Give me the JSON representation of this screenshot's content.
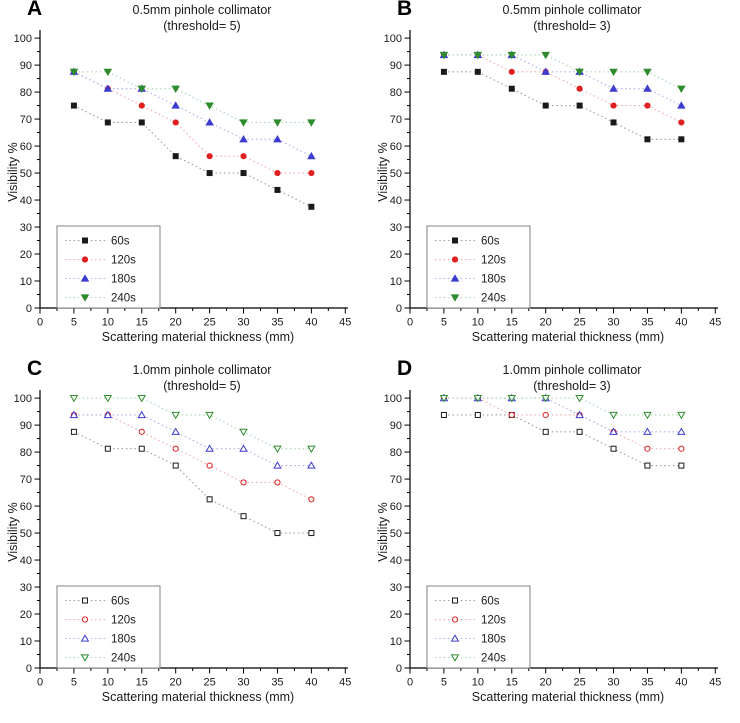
{
  "figure": {
    "background": "#ffffff",
    "axis_color": "#000000",
    "tick_label_color": "#1a1a1a",
    "legend_border_color": "#808080",
    "series_colors": {
      "60s": "#1a1a1a",
      "120s": "#e02020",
      "180s": "#3c3cd0",
      "240s": "#2e8b2e"
    },
    "series_line_colors": {
      "60s": "#9a9a9a",
      "120s": "#f0a6a6",
      "180s": "#a9aee9",
      "240s": "#a9d8a9"
    }
  },
  "chart_data": [
    {
      "type": "line",
      "panel_letter": "A",
      "title": "0.5mm pinhole collimator",
      "subtitle": "(threshold= 5)",
      "xlabel": "Scattering material thickness (mm)",
      "ylabel": "Visibility %",
      "xlim": [
        0,
        45
      ],
      "ylim": [
        0,
        100
      ],
      "x_ticks": [
        0,
        5,
        10,
        15,
        20,
        25,
        30,
        35,
        40,
        45
      ],
      "y_ticks": [
        0,
        10,
        20,
        30,
        40,
        50,
        60,
        70,
        80,
        90,
        100
      ],
      "grid": false,
      "legend_position": "lower-left",
      "marker_style": "filled",
      "x": [
        5,
        10,
        15,
        20,
        25,
        30,
        35,
        40
      ],
      "series": [
        {
          "name": "60s",
          "marker": "square",
          "color": "#1a1a1a",
          "line_color": "#9a9a9a",
          "values": [
            75,
            68.75,
            68.75,
            56.25,
            50,
            50,
            43.75,
            37.5
          ]
        },
        {
          "name": "120s",
          "marker": "circle",
          "color": "#e02020",
          "line_color": "#f0a6a6",
          "values": [
            87.5,
            81.25,
            75,
            68.75,
            56.25,
            56.25,
            50,
            50
          ]
        },
        {
          "name": "180s",
          "marker": "triangle-up",
          "color": "#3c3cd0",
          "line_color": "#a9aee9",
          "values": [
            87.5,
            81.25,
            81.25,
            75,
            68.75,
            62.5,
            62.5,
            56.25
          ]
        },
        {
          "name": "240s",
          "marker": "triangle-down",
          "color": "#2e8b2e",
          "line_color": "#a9d8a9",
          "values": [
            87.5,
            87.5,
            81.25,
            81.25,
            75,
            68.75,
            68.75,
            68.75
          ]
        }
      ]
    },
    {
      "type": "line",
      "panel_letter": "B",
      "title": "0.5mm pinhole collimator",
      "subtitle": "(threshold= 3)",
      "xlabel": "Scattering material thickness (mm)",
      "ylabel": "Visibility %",
      "xlim": [
        0,
        45
      ],
      "ylim": [
        0,
        100
      ],
      "x_ticks": [
        0,
        5,
        10,
        15,
        20,
        25,
        30,
        35,
        40,
        45
      ],
      "y_ticks": [
        0,
        10,
        20,
        30,
        40,
        50,
        60,
        70,
        80,
        90,
        100
      ],
      "grid": false,
      "legend_position": "lower-left",
      "marker_style": "filled",
      "x": [
        5,
        10,
        15,
        20,
        25,
        30,
        35,
        40
      ],
      "series": [
        {
          "name": "60s",
          "marker": "square",
          "color": "#1a1a1a",
          "line_color": "#9a9a9a",
          "values": [
            87.5,
            87.5,
            81.25,
            75,
            75,
            68.75,
            62.5,
            62.5
          ]
        },
        {
          "name": "120s",
          "marker": "circle",
          "color": "#e02020",
          "line_color": "#f0a6a6",
          "values": [
            93.75,
            93.75,
            87.5,
            87.5,
            81.25,
            75,
            75,
            68.75
          ]
        },
        {
          "name": "180s",
          "marker": "triangle-up",
          "color": "#3c3cd0",
          "line_color": "#a9aee9",
          "values": [
            93.75,
            93.75,
            93.75,
            87.5,
            87.5,
            81.25,
            81.25,
            75
          ]
        },
        {
          "name": "240s",
          "marker": "triangle-down",
          "color": "#2e8b2e",
          "line_color": "#a9d8a9",
          "values": [
            93.75,
            93.75,
            93.75,
            93.75,
            87.5,
            87.5,
            87.5,
            81.25
          ]
        }
      ]
    },
    {
      "type": "line",
      "panel_letter": "C",
      "title": "1.0mm pinhole collimator",
      "subtitle": "(threshold= 5)",
      "xlabel": "Scattering material thickness (mm)",
      "ylabel": "Visibility %",
      "xlim": [
        0,
        45
      ],
      "ylim": [
        0,
        100
      ],
      "x_ticks": [
        0,
        5,
        10,
        15,
        20,
        25,
        30,
        35,
        40,
        45
      ],
      "y_ticks": [
        0,
        10,
        20,
        30,
        40,
        50,
        60,
        70,
        80,
        90,
        100
      ],
      "grid": false,
      "legend_position": "lower-left",
      "marker_style": "open",
      "x": [
        5,
        10,
        15,
        20,
        25,
        30,
        35,
        40
      ],
      "series": [
        {
          "name": "60s",
          "marker": "square",
          "color": "#1a1a1a",
          "line_color": "#9a9a9a",
          "values": [
            87.5,
            81.25,
            81.25,
            75,
            62.5,
            56.25,
            50,
            50
          ]
        },
        {
          "name": "120s",
          "marker": "circle",
          "color": "#e02020",
          "line_color": "#f0a6a6",
          "values": [
            93.75,
            93.75,
            87.5,
            81.25,
            75,
            68.75,
            68.75,
            62.5
          ]
        },
        {
          "name": "180s",
          "marker": "triangle-up",
          "color": "#3c3cd0",
          "line_color": "#a9aee9",
          "values": [
            93.75,
            93.75,
            93.75,
            87.5,
            81.25,
            81.25,
            75,
            75
          ]
        },
        {
          "name": "240s",
          "marker": "triangle-down",
          "color": "#2e8b2e",
          "line_color": "#a9d8a9",
          "values": [
            100,
            100,
            100,
            93.75,
            93.75,
            87.5,
            81.25,
            81.25
          ]
        }
      ]
    },
    {
      "type": "line",
      "panel_letter": "D",
      "title": "1.0mm pinhole collimator",
      "subtitle": "(threshold= 3)",
      "xlabel": "Scattering material thickness (mm)",
      "ylabel": "Visibility %",
      "xlim": [
        0,
        45
      ],
      "ylim": [
        0,
        100
      ],
      "x_ticks": [
        0,
        5,
        10,
        15,
        20,
        25,
        30,
        35,
        40,
        45
      ],
      "y_ticks": [
        0,
        10,
        20,
        30,
        40,
        50,
        60,
        70,
        80,
        90,
        100
      ],
      "grid": false,
      "legend_position": "lower-left",
      "marker_style": "open",
      "x": [
        5,
        10,
        15,
        20,
        25,
        30,
        35,
        40
      ],
      "series": [
        {
          "name": "60s",
          "marker": "square",
          "color": "#1a1a1a",
          "line_color": "#9a9a9a",
          "values": [
            93.75,
            93.75,
            93.75,
            87.5,
            87.5,
            81.25,
            75,
            75
          ]
        },
        {
          "name": "120s",
          "marker": "circle",
          "color": "#e02020",
          "line_color": "#f0a6a6",
          "values": [
            100,
            100,
            93.75,
            93.75,
            93.75,
            87.5,
            81.25,
            81.25
          ]
        },
        {
          "name": "180s",
          "marker": "triangle-up",
          "color": "#3c3cd0",
          "line_color": "#a9aee9",
          "values": [
            100,
            100,
            100,
            100,
            93.75,
            87.5,
            87.5,
            87.5
          ]
        },
        {
          "name": "240s",
          "marker": "triangle-down",
          "color": "#2e8b2e",
          "line_color": "#a9d8a9",
          "values": [
            100,
            100,
            100,
            100,
            100,
            93.75,
            93.75,
            93.75
          ]
        }
      ]
    }
  ]
}
